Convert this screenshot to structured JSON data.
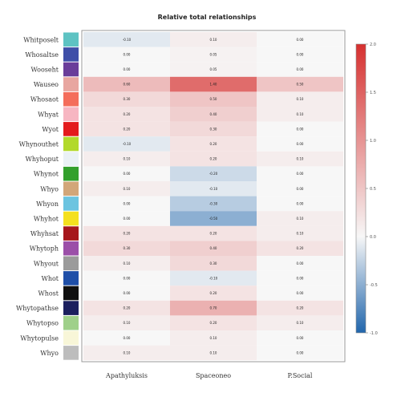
{
  "chart_data": {
    "type": "heatmap",
    "title": "Relative total relationships",
    "columns": [
      "Apathyluksis",
      "Spaceoneo",
      "P.Social"
    ],
    "rows": [
      {
        "label": "Whitposelt",
        "group_color": "#5ec3c3",
        "values": [
          -0.1,
          0.1,
          0.0
        ]
      },
      {
        "label": "Whosaltse",
        "group_color": "#3f4fa8",
        "values": [
          0.0,
          0.05,
          0.0
        ]
      },
      {
        "label": "Wooseht",
        "group_color": "#6a3d9a",
        "values": [
          0.0,
          0.05,
          0.0
        ]
      },
      {
        "label": "Wauseo",
        "group_color": "#e8a6a0",
        "values": [
          0.6,
          1.4,
          0.5
        ]
      },
      {
        "label": "Whosaot",
        "group_color": "#f46d5b",
        "values": [
          0.3,
          0.5,
          0.1
        ]
      },
      {
        "label": "Whyat",
        "group_color": "#f7b6c2",
        "values": [
          0.2,
          0.4,
          0.1
        ]
      },
      {
        "label": "Wyot",
        "group_color": "#e31a1c",
        "values": [
          0.2,
          0.3,
          0.0
        ]
      },
      {
        "label": "Whynouthet",
        "group_color": "#b2d92b",
        "values": [
          -0.1,
          0.2,
          0.0
        ]
      },
      {
        "label": "Whyhoput",
        "group_color": "#eaf1f5",
        "values": [
          0.1,
          0.2,
          0.1
        ]
      },
      {
        "label": "Whynot",
        "group_color": "#33a02c",
        "values": [
          0.0,
          -0.2,
          0.0
        ]
      },
      {
        "label": "Whyo",
        "group_color": "#d2a679",
        "values": [
          0.1,
          -0.1,
          0.0
        ]
      },
      {
        "label": "Whyon",
        "group_color": "#6cc4e0",
        "values": [
          0.0,
          -0.3,
          0.0
        ]
      },
      {
        "label": "Whyhot",
        "group_color": "#f4e01f",
        "values": [
          0.0,
          -0.5,
          0.1
        ]
      },
      {
        "label": "Whyhsat",
        "group_color": "#a6171c",
        "values": [
          0.2,
          0.2,
          0.1
        ]
      },
      {
        "label": "Whytoph",
        "group_color": "#9b4fa8",
        "values": [
          0.3,
          0.4,
          0.2
        ]
      },
      {
        "label": "Whyout",
        "group_color": "#9b9b9b",
        "values": [
          0.1,
          0.3,
          0.0
        ]
      },
      {
        "label": "Whot",
        "group_color": "#1f4fa8",
        "values": [
          0.0,
          -0.1,
          0.0
        ]
      },
      {
        "label": "Whost",
        "group_color": "#111111",
        "values": [
          0.0,
          0.2,
          0.0
        ]
      },
      {
        "label": "Whytopathse",
        "group_color": "#1b1f5e",
        "values": [
          0.2,
          0.7,
          0.2
        ]
      },
      {
        "label": "Whytopso",
        "group_color": "#9fd08a",
        "values": [
          0.1,
          0.2,
          0.1
        ]
      },
      {
        "label": "Whytopulse",
        "group_color": "#f8f6d8",
        "values": [
          0.0,
          0.1,
          0.0
        ]
      },
      {
        "label": "Whyo",
        "group_color": "#bdbdbd",
        "values": [
          0.1,
          0.1,
          0.0
        ]
      }
    ],
    "colorbar": {
      "vmin": -1.0,
      "vmax": 2.0,
      "ticks": [
        "-1.0",
        "-0.5",
        "0.0",
        "0.5",
        "1.0",
        "1.5",
        "2.0"
      ],
      "low_color": "#2166ac",
      "mid_color": "#f7f7f7",
      "high_color": "#d6302f"
    },
    "grid": false,
    "legend": "right"
  }
}
